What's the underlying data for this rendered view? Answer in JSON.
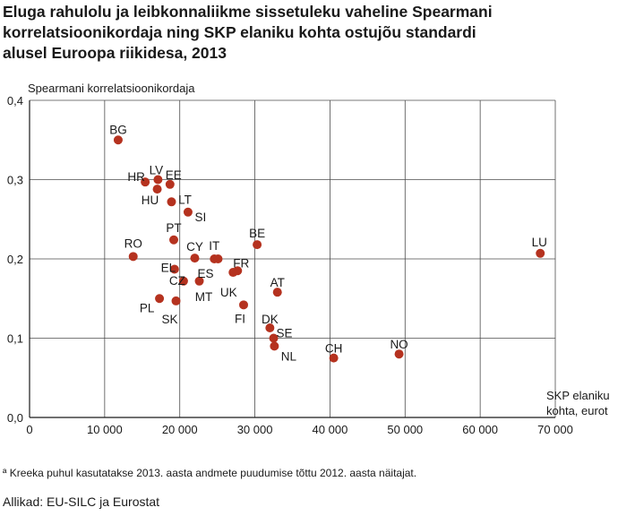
{
  "title_lines": [
    "Eluga rahulolu ja leibkonnaliikme sissetuleku vaheline Spearmani",
    "korrelatsioonikordaja ning SKP elaniku kohta ostujõu standardi",
    "alusel Euroopa riikidesa, 2013"
  ],
  "footnote": "ª Kreeka puhul kasutatakse 2013. aasta andmete puudumise tõttu 2012. aasta näitajat.",
  "source": "Allikad: EU-SILC ja Eurostat",
  "chart_data": {
    "type": "scatter",
    "ylabel": "Spearmani korrelatsioonikordaja",
    "xlabel_lines": [
      "SKP elaniku",
      "kohta, eurot"
    ],
    "xlim": [
      0,
      70000
    ],
    "ylim": [
      0,
      0.4
    ],
    "x_ticks": [
      0,
      10000,
      20000,
      30000,
      40000,
      50000,
      60000,
      70000
    ],
    "x_tick_labels": [
      "0",
      "10 000",
      "20 000",
      "30 000",
      "40 000",
      "50 000",
      "60 000",
      "70 000"
    ],
    "y_ticks": [
      0,
      0.1,
      0.2,
      0.3,
      0.4
    ],
    "y_tick_labels": [
      "0,0",
      "0,1",
      "0,2",
      "0,3",
      "0,4"
    ],
    "grid": true,
    "marker_color": "#b5321f",
    "points": [
      {
        "label": "BG",
        "x": 11800,
        "y": 0.35
      },
      {
        "label": "HR",
        "x": 15400,
        "y": 0.297
      },
      {
        "label": "LV",
        "x": 17100,
        "y": 0.3
      },
      {
        "label": "EE",
        "x": 18700,
        "y": 0.294
      },
      {
        "label": "HU",
        "x": 17000,
        "y": 0.288
      },
      {
        "label": "LT",
        "x": 18900,
        "y": 0.272
      },
      {
        "label": "SI",
        "x": 21100,
        "y": 0.259
      },
      {
        "label": "PT",
        "x": 19200,
        "y": 0.224
      },
      {
        "label": "RO",
        "x": 13800,
        "y": 0.203
      },
      {
        "label": "CY",
        "x": 22000,
        "y": 0.201
      },
      {
        "label": "IT",
        "x": 24600,
        "y": 0.2
      },
      {
        "label": "ES",
        "x": 25100,
        "y": 0.2
      },
      {
        "label": "EL",
        "x": 19300,
        "y": 0.187
      },
      {
        "label": "BE",
        "x": 30300,
        "y": 0.218
      },
      {
        "label": "FR",
        "x": 27700,
        "y": 0.185
      },
      {
        "label": "UK",
        "x": 27100,
        "y": 0.183
      },
      {
        "label": "CZ",
        "x": 20500,
        "y": 0.172
      },
      {
        "label": "MT",
        "x": 22600,
        "y": 0.172
      },
      {
        "label": "AT",
        "x": 33000,
        "y": 0.158
      },
      {
        "label": "PL",
        "x": 17300,
        "y": 0.15
      },
      {
        "label": "SK",
        "x": 19500,
        "y": 0.147
      },
      {
        "label": "FI",
        "x": 28500,
        "y": 0.142
      },
      {
        "label": "DK",
        "x": 32000,
        "y": 0.113
      },
      {
        "label": "SE",
        "x": 32500,
        "y": 0.1
      },
      {
        "label": "NL",
        "x": 32600,
        "y": 0.09
      },
      {
        "label": "CH",
        "x": 40500,
        "y": 0.075
      },
      {
        "label": "NO",
        "x": 49200,
        "y": 0.08
      },
      {
        "label": "LU",
        "x": 68000,
        "y": 0.207
      }
    ]
  }
}
